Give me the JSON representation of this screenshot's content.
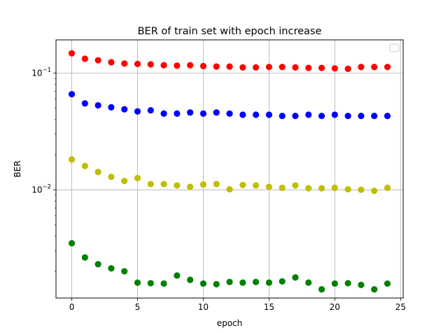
{
  "chart_data": {
    "type": "scatter",
    "title": "BER of train set with epoch increase",
    "xlabel": "epoch",
    "ylabel": "BER",
    "xlim": [
      -1.2,
      25.2
    ],
    "ylim": [
      0.00118,
      0.193
    ],
    "yscale": "log",
    "grid": true,
    "legend": {
      "placement": "top-right",
      "entries": []
    },
    "x_ticks": [
      {
        "value": 0,
        "label": "0"
      },
      {
        "value": 5,
        "label": "5"
      },
      {
        "value": 10,
        "label": "10"
      },
      {
        "value": 15,
        "label": "15"
      },
      {
        "value": 20,
        "label": "20"
      },
      {
        "value": 25,
        "label": "25"
      }
    ],
    "y_ticks": [
      {
        "value": 0.1,
        "base": "10",
        "exp": "−1"
      },
      {
        "value": 0.01,
        "base": "10",
        "exp": "−2"
      }
    ],
    "x": [
      0,
      1,
      2,
      3,
      4,
      5,
      6,
      7,
      8,
      9,
      10,
      11,
      12,
      13,
      14,
      15,
      16,
      17,
      18,
      19,
      20,
      21,
      22,
      23,
      24
    ],
    "series": [
      {
        "color": "#ff0000",
        "values": [
          0.148,
          0.133,
          0.129,
          0.124,
          0.121,
          0.12,
          0.119,
          0.117,
          0.116,
          0.117,
          0.115,
          0.114,
          0.114,
          0.112,
          0.112,
          0.113,
          0.113,
          0.112,
          0.111,
          0.111,
          0.11,
          0.109,
          0.113,
          0.113,
          0.113
        ]
      },
      {
        "color": "#0000ff",
        "values": [
          0.066,
          0.055,
          0.053,
          0.051,
          0.049,
          0.047,
          0.048,
          0.045,
          0.045,
          0.046,
          0.045,
          0.046,
          0.045,
          0.044,
          0.044,
          0.044,
          0.043,
          0.043,
          0.044,
          0.043,
          0.044,
          0.043,
          0.043,
          0.043,
          0.043
        ]
      },
      {
        "color": "#bfbf00",
        "values": [
          0.0182,
          0.016,
          0.0142,
          0.0129,
          0.0119,
          0.0126,
          0.0112,
          0.0112,
          0.0109,
          0.0106,
          0.0111,
          0.0112,
          0.0101,
          0.011,
          0.0109,
          0.0106,
          0.0104,
          0.0109,
          0.0103,
          0.0103,
          0.0104,
          0.0101,
          0.01,
          0.0098,
          0.0104
        ]
      },
      {
        "color": "#008000",
        "values": [
          0.00348,
          0.00263,
          0.0023,
          0.00212,
          0.002,
          0.0016,
          0.00158,
          0.00157,
          0.00184,
          0.00169,
          0.00157,
          0.00155,
          0.00162,
          0.0016,
          0.00162,
          0.0016,
          0.00164,
          0.00177,
          0.0016,
          0.0014,
          0.00157,
          0.00158,
          0.00153,
          0.0014,
          0.00157
        ]
      }
    ]
  }
}
